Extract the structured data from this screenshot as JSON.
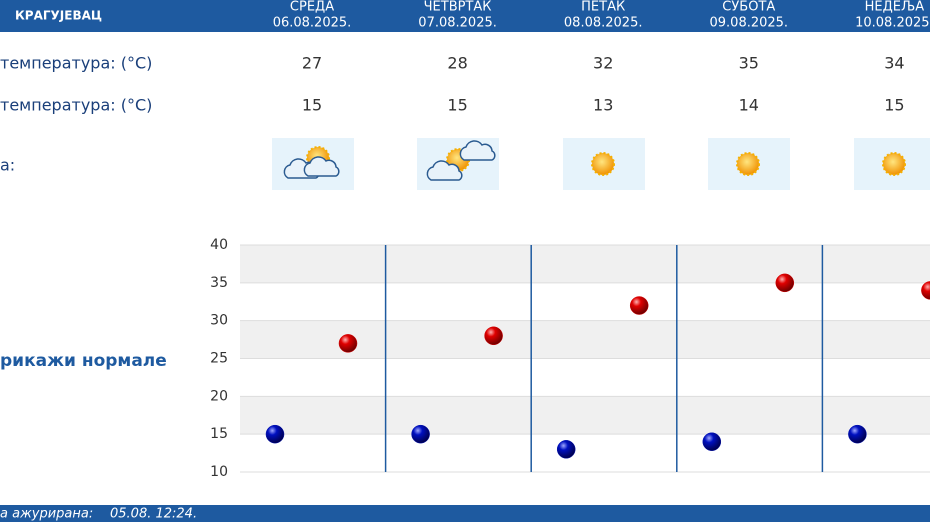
{
  "header": {
    "city": "КРАГУЈЕВАЦ",
    "days": [
      {
        "name": "СРЕДА",
        "date": "06.08.2025."
      },
      {
        "name": "ЧЕТВРТАК",
        "date": "07.08.2025."
      },
      {
        "name": "ПЕТАК",
        "date": "08.08.2025."
      },
      {
        "name": "СУБОТА",
        "date": "09.08.2025."
      },
      {
        "name": "НЕДЕЉА",
        "date": "10.08.2025."
      }
    ]
  },
  "table": {
    "rows": [
      {
        "label": "температура: (°C)",
        "values": [
          27,
          28,
          32,
          35,
          34
        ]
      },
      {
        "label": "температура: (°C)",
        "values": [
          15,
          15,
          13,
          14,
          15
        ]
      },
      {
        "label": "а:"
      }
    ]
  },
  "toggle": "рикажи нормале",
  "chart": {
    "ylim": [
      10,
      40
    ],
    "yticks": [
      10,
      15,
      20,
      25,
      30,
      35,
      40
    ],
    "max_color": "#d40000",
    "min_color": "#0010b0"
  },
  "footer": {
    "label": "а ажурирана:",
    "time": "05.08. 12:24."
  }
}
